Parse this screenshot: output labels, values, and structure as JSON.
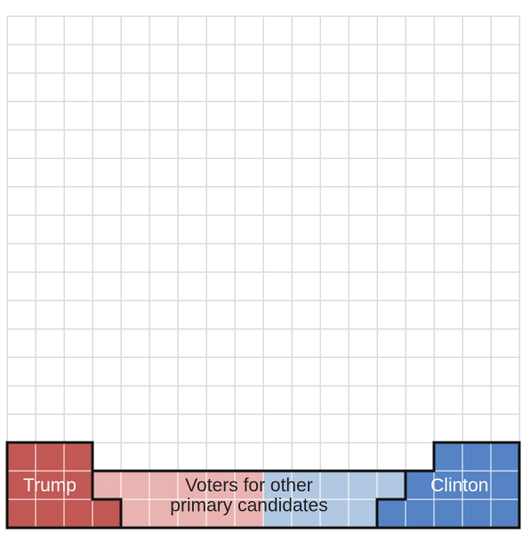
{
  "chart_data": {
    "type": "heatmap",
    "grid": {
      "columns": 18,
      "rows": 18
    },
    "colors": {
      "empty_fill": "#ffffff",
      "grid_line": "#dcdcdc",
      "cell_line": "#ffffff",
      "outline": "#111111",
      "trump": "#c25854",
      "other_republican": "#e9b3b1",
      "other_democrat": "#b1c8e2",
      "clinton": "#5583c4"
    },
    "regions": [
      {
        "id": "trump",
        "label": "Trump",
        "color_key": "trump",
        "cells": [
          [
            0,
            15
          ],
          [
            1,
            15
          ],
          [
            2,
            15
          ],
          [
            0,
            16
          ],
          [
            1,
            16
          ],
          [
            2,
            16
          ],
          [
            0,
            17
          ],
          [
            1,
            17
          ],
          [
            2,
            17
          ],
          [
            3,
            17
          ]
        ]
      },
      {
        "id": "other-republican",
        "label": "",
        "color_key": "other_republican",
        "cells": [
          [
            3,
            16
          ],
          [
            4,
            16
          ],
          [
            5,
            16
          ],
          [
            6,
            16
          ],
          [
            7,
            16
          ],
          [
            8,
            16
          ],
          [
            4,
            17
          ],
          [
            5,
            17
          ],
          [
            6,
            17
          ],
          [
            7,
            17
          ],
          [
            8,
            17
          ]
        ]
      },
      {
        "id": "other-democrat",
        "label": "",
        "color_key": "other_democrat",
        "cells": [
          [
            9,
            16
          ],
          [
            10,
            16
          ],
          [
            11,
            16
          ],
          [
            12,
            16
          ],
          [
            13,
            16
          ],
          [
            9,
            17
          ],
          [
            10,
            17
          ],
          [
            11,
            17
          ],
          [
            12,
            17
          ]
        ]
      },
      {
        "id": "clinton",
        "label": "Clinton",
        "color_key": "clinton",
        "cells": [
          [
            15,
            15
          ],
          [
            16,
            15
          ],
          [
            17,
            15
          ],
          [
            14,
            16
          ],
          [
            15,
            16
          ],
          [
            16,
            16
          ],
          [
            17,
            16
          ],
          [
            13,
            17
          ],
          [
            14,
            17
          ],
          [
            15,
            17
          ],
          [
            16,
            17
          ],
          [
            17,
            17
          ]
        ]
      }
    ],
    "annotations": {
      "trump": "Trump",
      "clinton": "Clinton",
      "other_line_1": "Voters for other",
      "other_line_2": "primary candidates"
    }
  }
}
